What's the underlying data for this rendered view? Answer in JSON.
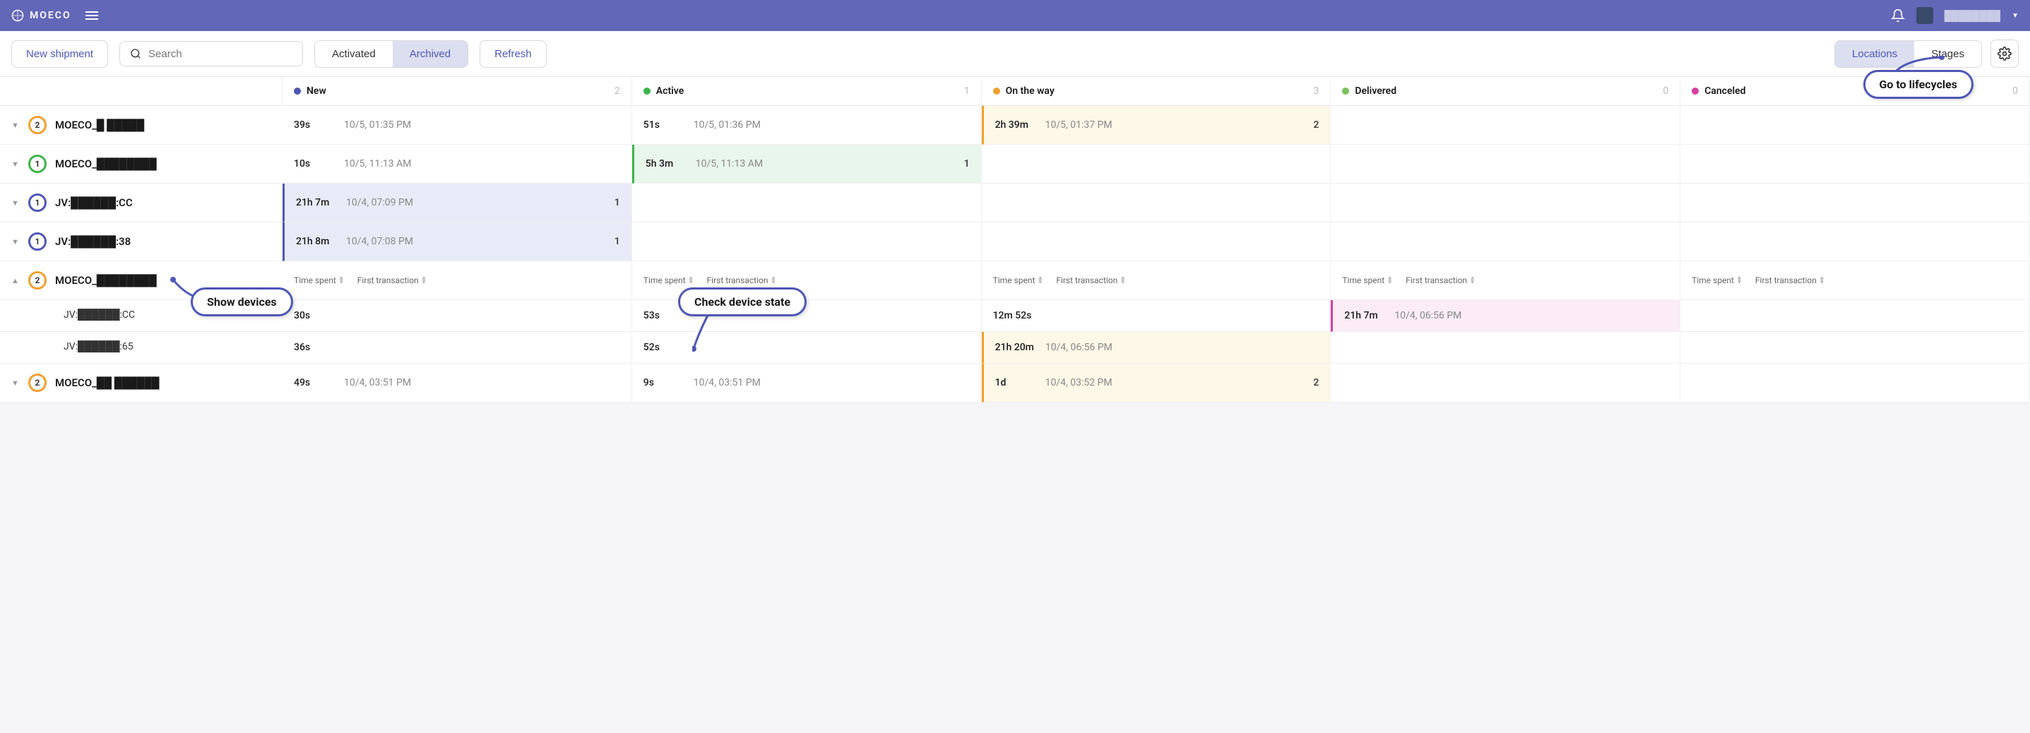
{
  "header": {
    "brand": "MOECO",
    "user_name": "████████"
  },
  "toolbar": {
    "new_shipment": "New shipment",
    "search_placeholder": "Search",
    "tab_activated": "Activated",
    "tab_archived": "Archived",
    "refresh": "Refresh",
    "view_locations": "Locations",
    "view_stages": "Stages"
  },
  "columns": [
    {
      "label": "New",
      "count": "2",
      "color": "#4f56b5"
    },
    {
      "label": "Active",
      "count": "1",
      "color": "#3bb54a"
    },
    {
      "label": "On the way",
      "count": "3",
      "color": "#f0a030"
    },
    {
      "label": "Delivered",
      "count": "0",
      "color": "#7ac060"
    },
    {
      "label": "Canceled",
      "count": "0",
      "color": "#d63fa1"
    }
  ],
  "sub_headers": {
    "time_spent": "Time spent",
    "first_tx": "First transaction"
  },
  "rows": [
    {
      "name": "MOECO_█ █████",
      "badge_count": "2",
      "badge_color": "#f0a030",
      "expanded": false,
      "cells": [
        {
          "time": "39s",
          "ts": "10/5, 01:35 PM"
        },
        {
          "time": "51s",
          "ts": "10/5, 01:36 PM"
        },
        {
          "time": "2h 39m",
          "ts": "10/5, 01:37 PM",
          "cnt": "2",
          "hl": "yellow"
        },
        {},
        {}
      ]
    },
    {
      "name": "MOECO_████████",
      "badge_count": "1",
      "badge_color": "#3bb54a",
      "expanded": false,
      "cells": [
        {
          "time": "10s",
          "ts": "10/5, 11:13 AM"
        },
        {
          "time": "5h 3m",
          "ts": "10/5, 11:13 AM",
          "cnt": "1",
          "hl": "green"
        },
        {},
        {},
        {}
      ]
    },
    {
      "name": "JV:██████:CC",
      "badge_count": "1",
      "badge_color": "#4f56b5",
      "expanded": false,
      "cells": [
        {
          "time": "21h 7m",
          "ts": "10/4, 07:09 PM",
          "cnt": "1",
          "hl": "blue"
        },
        {},
        {},
        {},
        {}
      ]
    },
    {
      "name": "JV:██████:38",
      "badge_count": "1",
      "badge_color": "#4f56b5",
      "expanded": false,
      "cells": [
        {
          "time": "21h 8m",
          "ts": "10/4, 07:08 PM",
          "cnt": "1",
          "hl": "blue"
        },
        {},
        {},
        {},
        {}
      ]
    },
    {
      "name": "MOECO_████████",
      "badge_count": "2",
      "badge_color": "#f0a030",
      "expanded": true,
      "cells": [],
      "devices": [
        {
          "name": "JV:██████:CC",
          "cells": [
            {
              "time": "30s"
            },
            {
              "time": "53s"
            },
            {
              "time": "12m 52s"
            },
            {
              "time": "21h 7m",
              "ts": "10/4, 06:56 PM",
              "hl": "pink"
            },
            {}
          ]
        },
        {
          "name": "JV:██████:65",
          "cells": [
            {
              "time": "36s"
            },
            {
              "time": "52s"
            },
            {
              "time": "21h 20m",
              "ts": "10/4, 06:56 PM",
              "hl": "yellow"
            },
            {},
            {}
          ]
        }
      ]
    },
    {
      "name": "MOECO_██ ██████",
      "badge_count": "2",
      "badge_color": "#f0a030",
      "expanded": false,
      "cells": [
        {
          "time": "49s",
          "ts": "10/4, 03:51 PM"
        },
        {
          "time": "9s",
          "ts": "10/4, 03:51 PM"
        },
        {
          "time": "1d",
          "ts": "10/4, 03:52 PM",
          "cnt": "2",
          "hl": "yellow"
        },
        {},
        {}
      ]
    }
  ],
  "callouts": {
    "lifecycles": "Go to lifecycles",
    "show_devices": "Show devices",
    "check_state": "Check device state"
  }
}
